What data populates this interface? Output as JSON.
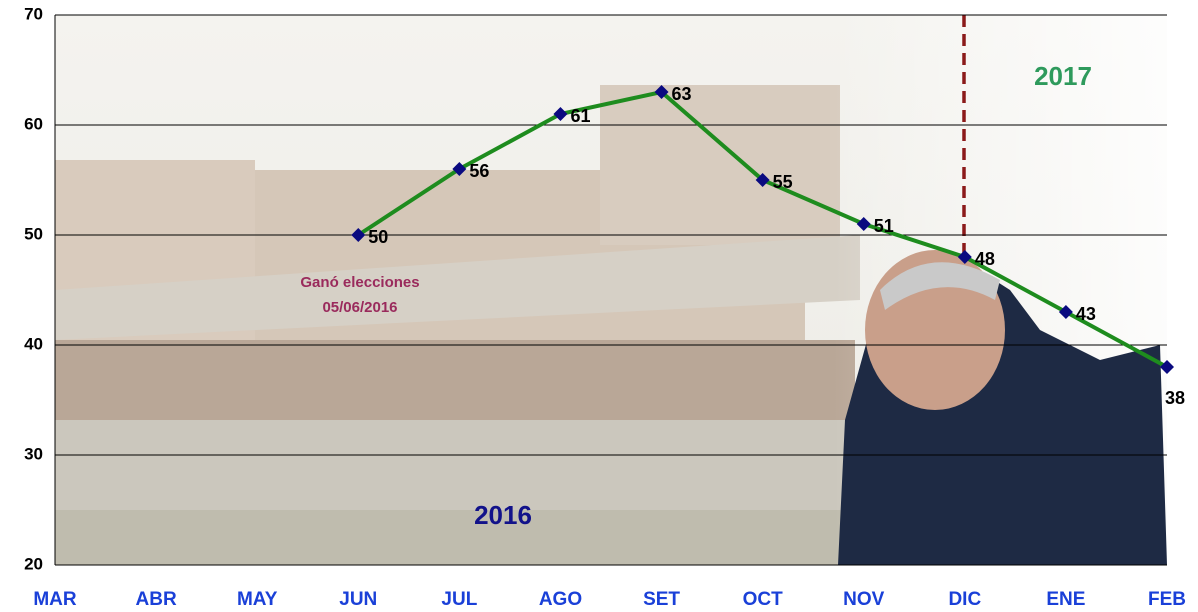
{
  "chart_data": {
    "type": "line",
    "categories": [
      "MAR",
      "ABR",
      "MAY",
      "JUN",
      "JUL",
      "AGO",
      "SET",
      "OCT",
      "NOV",
      "DIC",
      "ENE",
      "FEB"
    ],
    "values": [
      null,
      null,
      null,
      50,
      56,
      61,
      63,
      55,
      51,
      48,
      43,
      38
    ],
    "color": "#1e8c1e",
    "marker_color": "#0a0a80",
    "ylim": [
      20,
      70
    ],
    "yticks": [
      20,
      30,
      40,
      50,
      60,
      70
    ],
    "grid": true,
    "annotations": [
      "Ganó elecciones",
      "05/06/2016",
      "2016",
      "2017"
    ]
  }
}
